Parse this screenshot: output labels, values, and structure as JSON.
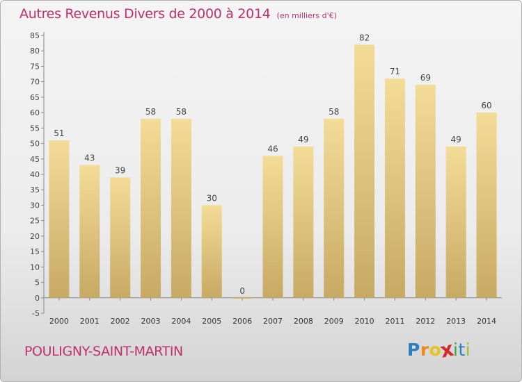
{
  "header": {
    "title": "Autres Revenus Divers de 2000 à 2014",
    "subtitle": "(en milliers d'€)"
  },
  "footer": {
    "location": "POULIGNY-SAINT-MARTIN",
    "logo_letters": [
      "P",
      "r",
      "o",
      "x",
      "i",
      "t",
      "i"
    ]
  },
  "colors": {
    "title": "#c0306a",
    "bar_top": "#f3dc97",
    "bar_bottom": "#c7aa64",
    "logo": [
      "#2a7fc4",
      "#f08a1c",
      "#e8c21e",
      "#d62a2a",
      "#3aa53a",
      "#2a7fc4",
      "#9cc22a"
    ]
  },
  "chart_data": {
    "type": "bar",
    "title": "Autres Revenus Divers de 2000 à 2014",
    "subtitle": "(en milliers d'€)",
    "xlabel": "",
    "ylabel": "",
    "categories": [
      "2000",
      "2001",
      "2002",
      "2003",
      "2004",
      "2005",
      "2006",
      "2007",
      "2008",
      "2009",
      "2010",
      "2011",
      "2012",
      "2013",
      "2014"
    ],
    "values": [
      51,
      43,
      39,
      58,
      58,
      30,
      0,
      46,
      49,
      58,
      82,
      71,
      69,
      49,
      60
    ],
    "ylim": [
      -5,
      85
    ],
    "yticks": [
      -5,
      0,
      5,
      10,
      15,
      20,
      25,
      30,
      35,
      40,
      45,
      50,
      55,
      60,
      65,
      70,
      75,
      80,
      85
    ],
    "grid": false,
    "legend": "none"
  }
}
